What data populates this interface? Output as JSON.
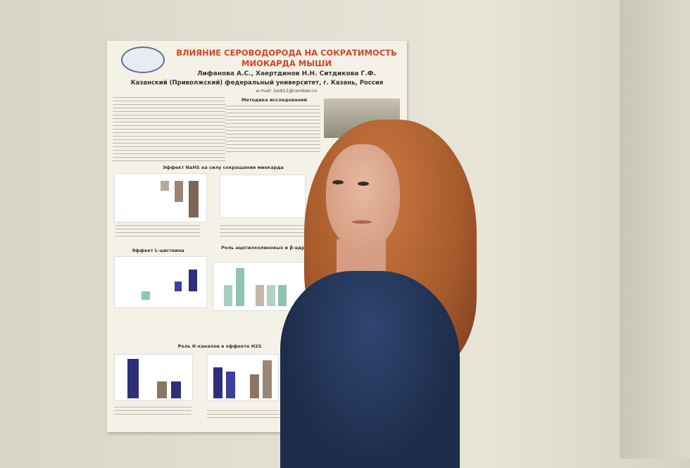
{
  "poster": {
    "title_line1": "ВЛИЯНИЕ СЕРОВОДОРОДА НА СОКРАТИМОСТЬ",
    "title_line2": "МИОКАРДА МЫШИ",
    "authors": "Лифанова А.С., Хаертдинов Н.Н. Ситдикова Г.Ф.",
    "affiliation": "Казанский (Приволжский) федеральный университет, г. Казань, Россия",
    "email": "e-mail: las911@rambler.ru",
    "methods_heading": "Методика исследований",
    "section1": "Эффект NaHS на силу сокращения миокарда",
    "section2": "Эффект L-цистеина",
    "section3": "Роль ацетилхолиновых и β-адренорецепторов в эффекте H2S",
    "section4": "Роль К-каналов в эффекте H2S"
  },
  "colors": {
    "title": "#d8432a",
    "bar_blue": "#2e2f7a",
    "bar_green": "#8fc4b0",
    "bar_brown": "#8b7565"
  }
}
